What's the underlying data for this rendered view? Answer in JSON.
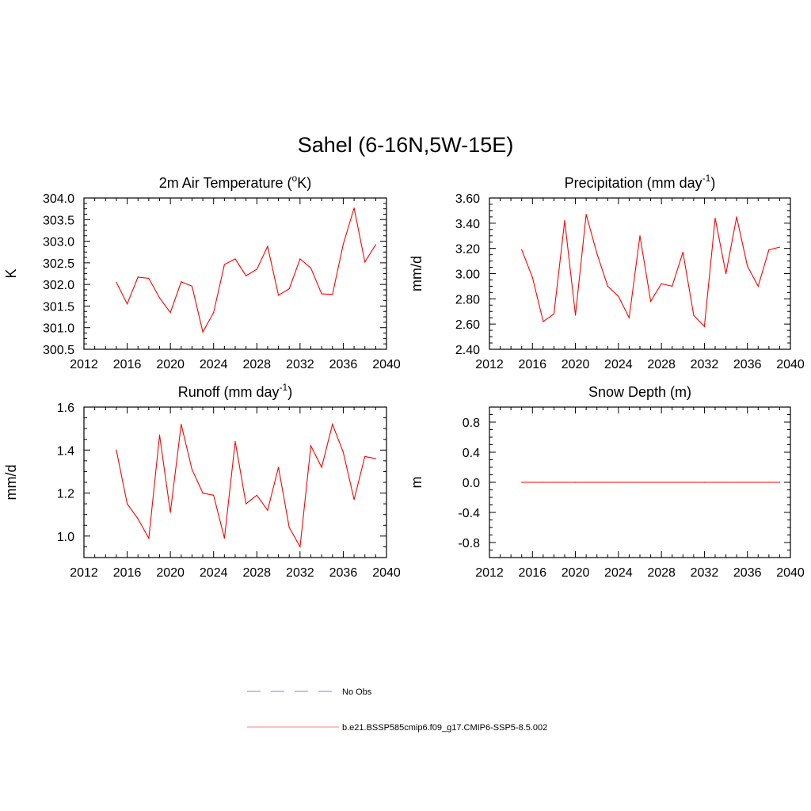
{
  "figure_title": "Sahel (6-16N,5W-15E)",
  "colors": {
    "model": "#ff0000",
    "obs": "#9999ff",
    "legend_model": "#ff9999",
    "axis": "#000000"
  },
  "legend": {
    "items": [
      {
        "label": "No Obs",
        "style": "dashed"
      },
      {
        "label": "b.e21.BSSP585cmip6.f09_g17.CMIP6-SSP5-8.5.002",
        "style": "solid"
      }
    ]
  },
  "chart_data": [
    {
      "type": "line",
      "title": "2m Air Temperature (",
      "title_sup": "o",
      "title_after": "K)",
      "ylabel": "K",
      "xlim": [
        2012,
        2040
      ],
      "ylim": [
        300.5,
        304.0
      ],
      "xticks": [
        "2012",
        "2016",
        "2020",
        "2024",
        "2028",
        "2032",
        "2036",
        "2040"
      ],
      "yticks": [
        "300.5",
        "301.0",
        "301.5",
        "302.0",
        "302.5",
        "303.0",
        "303.5",
        "304.0"
      ],
      "series": [
        {
          "x": [
            2015,
            2016,
            2017,
            2018,
            2019,
            2020,
            2021,
            2022,
            2023,
            2024,
            2025,
            2026,
            2027,
            2028,
            2029,
            2030,
            2031,
            2032,
            2033,
            2034,
            2035,
            2036,
            2037,
            2038,
            2039
          ],
          "values": [
            302.05,
            301.55,
            302.17,
            302.14,
            301.69,
            301.35,
            302.06,
            301.96,
            300.9,
            301.35,
            302.46,
            302.59,
            302.2,
            302.35,
            302.88,
            301.75,
            301.9,
            302.59,
            302.38,
            301.78,
            301.77,
            302.93,
            303.77,
            302.52,
            302.92
          ]
        }
      ]
    },
    {
      "type": "line",
      "title": "Precipitation (mm day",
      "title_sup": "-1",
      "title_after": ")",
      "ylabel": "mm/d",
      "xlim": [
        2012,
        2040
      ],
      "ylim": [
        2.4,
        3.6
      ],
      "xticks": [
        "2012",
        "2016",
        "2020",
        "2024",
        "2028",
        "2032",
        "2036",
        "2040"
      ],
      "yticks": [
        "2.40",
        "2.60",
        "2.80",
        "3.00",
        "3.20",
        "3.40",
        "3.60"
      ],
      "series": [
        {
          "x": [
            2015,
            2016,
            2017,
            2018,
            2019,
            2020,
            2021,
            2022,
            2023,
            2024,
            2025,
            2026,
            2027,
            2028,
            2029,
            2030,
            2031,
            2032,
            2033,
            2034,
            2035,
            2036,
            2037,
            2038,
            2039
          ],
          "values": [
            3.19,
            2.97,
            2.62,
            2.68,
            3.42,
            2.67,
            3.47,
            3.16,
            2.9,
            2.82,
            2.65,
            3.3,
            2.78,
            2.92,
            2.9,
            3.17,
            2.67,
            2.58,
            3.44,
            3.0,
            3.45,
            3.06,
            2.9,
            3.19,
            3.21
          ]
        }
      ]
    },
    {
      "type": "line",
      "title": "Runoff (mm day",
      "title_sup": "-1",
      "title_after": ")",
      "ylabel": "mm/d",
      "xlim": [
        2012,
        2040
      ],
      "ylim": [
        0.9,
        1.6
      ],
      "xticks": [
        "2012",
        "2016",
        "2020",
        "2024",
        "2028",
        "2032",
        "2036",
        "2040"
      ],
      "yticks": [
        "1.0",
        "1.2",
        "1.4",
        "1.6"
      ],
      "ytick_values": [
        1.0,
        1.2,
        1.4,
        1.6
      ],
      "series": [
        {
          "x": [
            2015,
            2016,
            2017,
            2018,
            2019,
            2020,
            2021,
            2022,
            2023,
            2024,
            2025,
            2026,
            2027,
            2028,
            2029,
            2030,
            2031,
            2032,
            2033,
            2034,
            2035,
            2036,
            2037,
            2038,
            2039
          ],
          "values": [
            1.4,
            1.15,
            1.08,
            0.99,
            1.47,
            1.11,
            1.52,
            1.31,
            1.2,
            1.19,
            0.99,
            1.44,
            1.15,
            1.19,
            1.12,
            1.32,
            1.04,
            0.95,
            1.42,
            1.32,
            1.52,
            1.39,
            1.17,
            1.37,
            1.36
          ]
        }
      ]
    },
    {
      "type": "line",
      "title": "Snow Depth (m)",
      "title_sup": "",
      "title_after": "",
      "ylabel": "m",
      "xlim": [
        2012,
        2040
      ],
      "ylim": [
        -1.0,
        1.0
      ],
      "xticks": [
        "2012",
        "2016",
        "2020",
        "2024",
        "2028",
        "2032",
        "2036",
        "2040"
      ],
      "yticks": [
        "-0.8",
        "-0.4",
        "0.0",
        "0.4",
        "0.8"
      ],
      "ytick_values": [
        -0.8,
        -0.4,
        0.0,
        0.4,
        0.8
      ],
      "series": [
        {
          "x": [
            2015,
            2016,
            2017,
            2018,
            2019,
            2020,
            2021,
            2022,
            2023,
            2024,
            2025,
            2026,
            2027,
            2028,
            2029,
            2030,
            2031,
            2032,
            2033,
            2034,
            2035,
            2036,
            2037,
            2038,
            2039
          ],
          "values": [
            0,
            0,
            0,
            0,
            0,
            0,
            0,
            0,
            0,
            0,
            0,
            0,
            0,
            0,
            0,
            0,
            0,
            0,
            0,
            0,
            0,
            0,
            0,
            0,
            0
          ]
        }
      ]
    }
  ]
}
